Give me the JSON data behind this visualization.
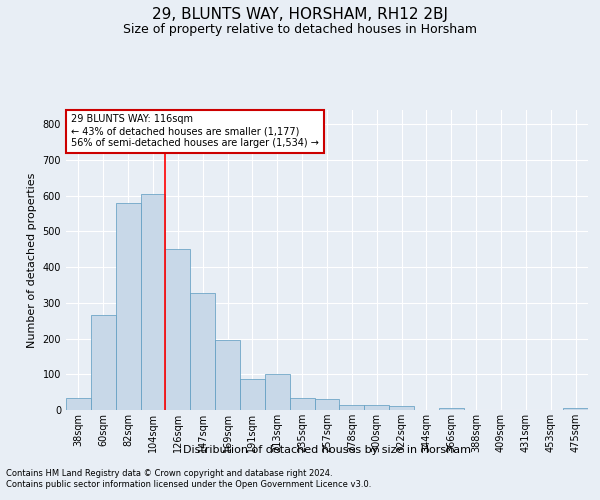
{
  "title": "29, BLUNTS WAY, HORSHAM, RH12 2BJ",
  "subtitle": "Size of property relative to detached houses in Horsham",
  "xlabel": "Distribution of detached houses by size in Horsham",
  "ylabel": "Number of detached properties",
  "footnote1": "Contains HM Land Registry data © Crown copyright and database right 2024.",
  "footnote2": "Contains public sector information licensed under the Open Government Licence v3.0.",
  "categories": [
    "38sqm",
    "60sqm",
    "82sqm",
    "104sqm",
    "126sqm",
    "147sqm",
    "169sqm",
    "191sqm",
    "213sqm",
    "235sqm",
    "257sqm",
    "278sqm",
    "300sqm",
    "322sqm",
    "344sqm",
    "366sqm",
    "388sqm",
    "409sqm",
    "431sqm",
    "453sqm",
    "475sqm"
  ],
  "values": [
    35,
    265,
    580,
    605,
    450,
    328,
    195,
    88,
    101,
    35,
    30,
    15,
    13,
    10,
    0,
    5,
    0,
    0,
    0,
    0,
    5
  ],
  "bar_color": "#c8d8e8",
  "bar_edge_color": "#5a9abf",
  "red_line_index": 3.5,
  "annotation_text_line1": "29 BLUNTS WAY: 116sqm",
  "annotation_text_line2": "← 43% of detached houses are smaller (1,177)",
  "annotation_text_line3": "56% of semi-detached houses are larger (1,534) →",
  "annotation_box_facecolor": "#ffffff",
  "annotation_box_edgecolor": "#cc0000",
  "ylim": [
    0,
    840
  ],
  "yticks": [
    0,
    100,
    200,
    300,
    400,
    500,
    600,
    700,
    800
  ],
  "background_color": "#e8eef5",
  "plot_bg_color": "#e8eef5",
  "grid_color": "#ffffff",
  "title_fontsize": 11,
  "subtitle_fontsize": 9,
  "axis_label_fontsize": 8,
  "tick_fontsize": 7,
  "annotation_fontsize": 7,
  "footnote_fontsize": 6
}
